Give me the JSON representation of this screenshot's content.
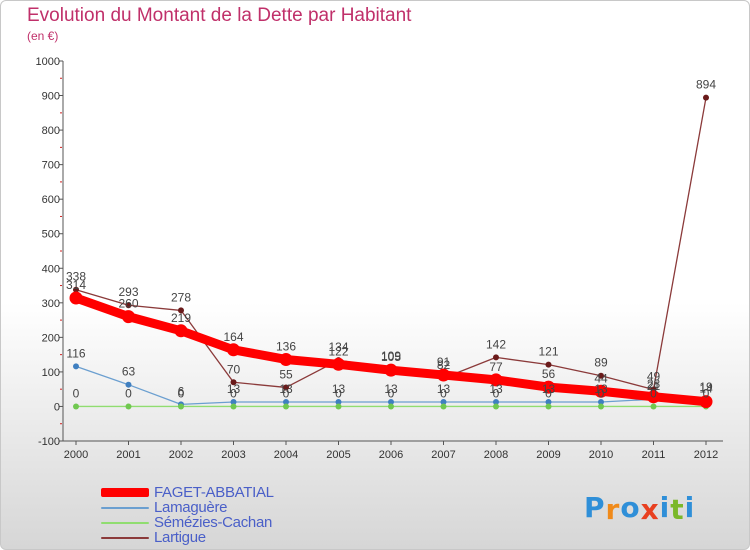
{
  "header": {
    "title": "Evolution du Montant de la Dette par Habitant",
    "unit": "(en €)"
  },
  "chart_data": {
    "type": "line",
    "x": [
      "2000",
      "2001",
      "2002",
      "2003",
      "2004",
      "2005",
      "2006",
      "2007",
      "2008",
      "2009",
      "2010",
      "2011",
      "2012"
    ],
    "ylim": [
      -100,
      1000
    ],
    "yticks": [
      -100,
      0,
      100,
      200,
      300,
      400,
      500,
      600,
      700,
      800,
      900,
      1000
    ],
    "grid": false,
    "legend_position": "bottom-left",
    "series": [
      {
        "name": "FAGET-ABBATIAL",
        "color": "#ff0000",
        "marker": "#ff0000",
        "values": [
          314,
          260,
          219,
          164,
          136,
          122,
          105,
          91,
          77,
          56,
          44,
          28,
          14
        ]
      },
      {
        "name": "Lamaguère",
        "color": "#6b9fd0",
        "marker": "#3f7fc0",
        "values": [
          116,
          63,
          6,
          13,
          13,
          13,
          13,
          13,
          13,
          13,
          13,
          21,
          19
        ]
      },
      {
        "name": "Sémézies-Cachan",
        "color": "#90dd70",
        "marker": "#70c850",
        "values": [
          0,
          0,
          0,
          0,
          0,
          0,
          0,
          0,
          0,
          0,
          0,
          0,
          0
        ]
      },
      {
        "name": "Lartigue",
        "color": "#8b3a3a",
        "marker": "#6a1a1a",
        "values": [
          338,
          293,
          278,
          70,
          55,
          134,
          109,
          82,
          142,
          121,
          89,
          49,
          894
        ]
      }
    ]
  },
  "legend": {
    "items": [
      "FAGET-ABBATIAL",
      "Lamaguère",
      "Sémézies-Cachan",
      "Lartigue"
    ]
  },
  "logo": {
    "letters": [
      "P",
      "r",
      "o",
      "x",
      "i",
      "t",
      "i"
    ],
    "colors": [
      "#2f8fd8",
      "#f08a1a",
      "#2f8fd8",
      "#e84020",
      "#2f8fd8",
      "#7ab82a",
      "#2f8fd8"
    ]
  }
}
